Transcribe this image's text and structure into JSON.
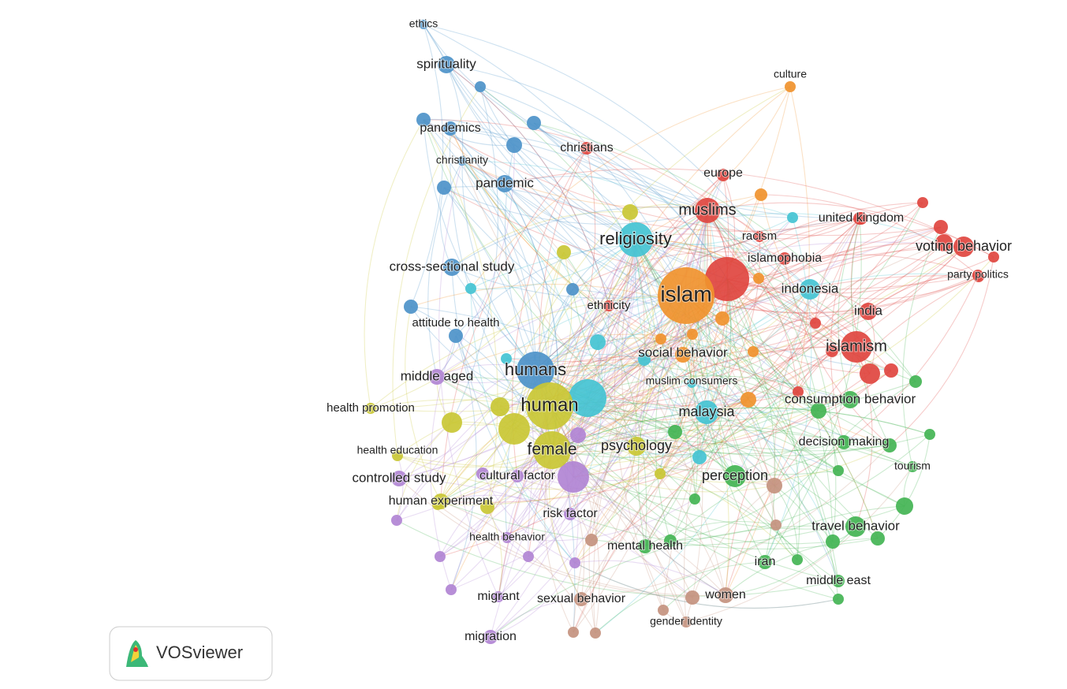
{
  "network": {
    "nodes": [
      {
        "label": "ethics"
      },
      {
        "label": "spirituality"
      },
      {
        "label": "pandemics"
      },
      {
        "label": "christianity"
      },
      {
        "label": "pandemic"
      },
      {
        "label": "christians"
      },
      {
        "label": "culture"
      },
      {
        "label": "europe"
      },
      {
        "label": "muslims"
      },
      {
        "label": "united kingdom"
      },
      {
        "label": "religiosity"
      },
      {
        "label": "racism"
      },
      {
        "label": "voting behavior"
      },
      {
        "label": "islamophobia"
      },
      {
        "label": "party politics"
      },
      {
        "label": "cross-sectional study"
      },
      {
        "label": "islam"
      },
      {
        "label": "indonesia"
      },
      {
        "label": "ethnicity"
      },
      {
        "label": "india"
      },
      {
        "label": "attitude to health"
      },
      {
        "label": "islamism"
      },
      {
        "label": "social behavior"
      },
      {
        "label": "humans"
      },
      {
        "label": "middle aged"
      },
      {
        "label": "muslim consumers"
      },
      {
        "label": "consumption behavior"
      },
      {
        "label": "human"
      },
      {
        "label": "health promotion"
      },
      {
        "label": "malaysia"
      },
      {
        "label": "decision making"
      },
      {
        "label": "female"
      },
      {
        "label": "psychology"
      },
      {
        "label": "health education"
      },
      {
        "label": "tourism"
      },
      {
        "label": "controlled study"
      },
      {
        "label": "cultural factor"
      },
      {
        "label": "perception"
      },
      {
        "label": "human experiment"
      },
      {
        "label": "risk factor"
      },
      {
        "label": "travel behavior"
      },
      {
        "label": "health behavior"
      },
      {
        "label": "mental health"
      },
      {
        "label": "iran"
      },
      {
        "label": "middle east"
      },
      {
        "label": "women"
      },
      {
        "label": "migrant"
      },
      {
        "label": "sexual behavior"
      },
      {
        "label": "gender identity"
      },
      {
        "label": "migration"
      }
    ]
  },
  "logo": {
    "text": "VOSviewer"
  }
}
